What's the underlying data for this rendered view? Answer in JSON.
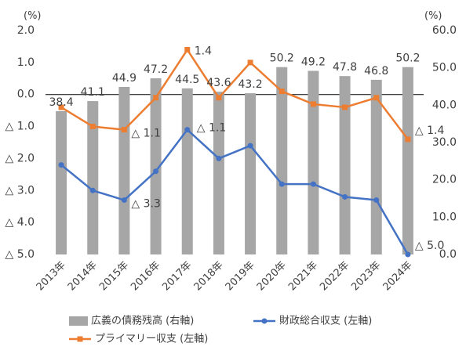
{
  "chart_data": {
    "type": "bar+line",
    "categories": [
      "2013年",
      "2014年",
      "2015年",
      "2016年",
      "2017年",
      "2018年",
      "2019年",
      "2020年",
      "2021年",
      "2022年",
      "2023年",
      "2024年"
    ],
    "left_axis": {
      "unit": "(%)",
      "ylim": [
        -5.0,
        2.0
      ],
      "ticks": [
        2.0,
        1.0,
        0.0,
        -1.0,
        -2.0,
        -3.0,
        -4.0,
        -5.0
      ],
      "tick_labels": [
        "2.0",
        "1.0",
        "0.0",
        "△ 1.0",
        "△ 2.0",
        "△ 3.0",
        "△ 4.0",
        "△ 5.0"
      ]
    },
    "right_axis": {
      "unit": "(%)",
      "ylim": [
        0,
        60
      ],
      "ticks": [
        60,
        50,
        40,
        30,
        20,
        10,
        0
      ],
      "tick_labels": [
        "60.0",
        "50.0",
        "40.0",
        "30.0",
        "20.0",
        "10.0",
        "0.0"
      ]
    },
    "series": [
      {
        "name": "広義の債務残高 (右軸)",
        "type": "bar",
        "axis": "right",
        "color": "#a6a6a6",
        "values": [
          38.4,
          41.1,
          44.9,
          47.2,
          44.5,
          43.6,
          43.2,
          50.2,
          49.2,
          47.8,
          46.8,
          50.2
        ],
        "labels": [
          "38.4",
          "41.1",
          "44.9",
          "47.2",
          "44.5",
          "43.6",
          "43.2",
          "50.2",
          "49.2",
          "47.8",
          "46.8",
          "50.2"
        ]
      },
      {
        "name": "財政総合収支 (左軸)",
        "type": "line",
        "axis": "left",
        "color": "#4472c4",
        "marker": "circle",
        "values": [
          -2.2,
          -3.0,
          -3.3,
          -2.4,
          -1.1,
          -2.0,
          -1.6,
          -2.8,
          -2.8,
          -3.2,
          -3.3,
          -5.0
        ],
        "labels": [
          null,
          null,
          "△ 3.3",
          null,
          null,
          null,
          null,
          null,
          null,
          null,
          null,
          "△ 5.0"
        ]
      },
      {
        "name": "プライマリー収支 (左軸)",
        "type": "line",
        "axis": "left",
        "color": "#ed7d31",
        "marker": "square",
        "values": [
          -0.4,
          -1.0,
          -1.1,
          -0.1,
          1.4,
          -0.1,
          1.0,
          0.1,
          -0.3,
          -0.4,
          -0.1,
          -1.4
        ],
        "labels": [
          null,
          null,
          "△ 1.1",
          null,
          "1.4",
          null,
          null,
          null,
          null,
          null,
          null,
          "△ 1.4"
        ]
      }
    ],
    "extra_labels": [
      {
        "text": "△ 1.1",
        "series": "財政総合収支 (左軸)",
        "index": 4
      }
    ],
    "legend": {
      "position": "bottom"
    },
    "grid": false
  }
}
